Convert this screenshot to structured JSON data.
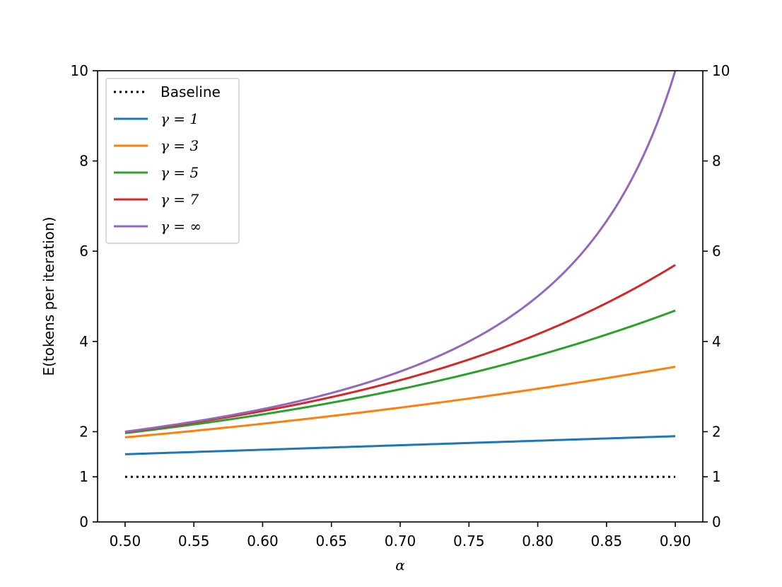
{
  "chart_data": {
    "type": "line",
    "xlabel": "α",
    "ylabel": "E(tokens per iteration)",
    "xlim": [
      0.48,
      0.92
    ],
    "ylim": [
      0,
      10
    ],
    "x_ticks": [
      "0.50",
      "0.55",
      "0.60",
      "0.65",
      "0.70",
      "0.75",
      "0.80",
      "0.85",
      "0.90"
    ],
    "y_ticks": [
      "0",
      "1",
      "2",
      "4",
      "6",
      "8",
      "10"
    ],
    "y_ticks_right": [
      "0",
      "1",
      "2",
      "4",
      "6",
      "8",
      "10"
    ],
    "grid": false,
    "legend_placement": "top-left",
    "x": [
      0.5,
      0.55,
      0.6,
      0.65,
      0.7,
      0.75,
      0.8,
      0.85,
      0.9
    ],
    "series": [
      {
        "name": "Baseline",
        "color": "#000000",
        "style": "dotted",
        "values": [
          1,
          1,
          1,
          1,
          1,
          1,
          1,
          1,
          1
        ]
      },
      {
        "name": "γ = 1",
        "color": "#1f77b4",
        "style": "solid",
        "values": [
          1.5,
          1.55,
          1.6,
          1.65,
          1.7,
          1.75,
          1.8,
          1.85,
          1.9
        ]
      },
      {
        "name": "γ = 3",
        "color": "#ff7f0e",
        "style": "solid",
        "values": [
          1.875,
          2.02,
          2.18,
          2.36,
          2.55,
          2.75,
          2.95,
          3.19,
          3.44
        ]
      },
      {
        "name": "γ = 5",
        "color": "#2ca02c",
        "style": "solid",
        "values": [
          1.97,
          2.19,
          2.45,
          2.76,
          3.11,
          3.52,
          4.0,
          4.52,
          5.0
        ]
      },
      {
        "name": "γ = 7",
        "color": "#d62728",
        "style": "solid",
        "values": [
          1.99,
          2.23,
          2.54,
          2.92,
          3.38,
          3.94,
          4.63,
          5.45,
          6.0
        ]
      },
      {
        "name": "γ = ∞",
        "color": "#9467bd",
        "style": "solid",
        "values": [
          2.0,
          2.22,
          2.5,
          2.86,
          3.33,
          4.0,
          5.0,
          6.67,
          10.0
        ]
      }
    ]
  }
}
